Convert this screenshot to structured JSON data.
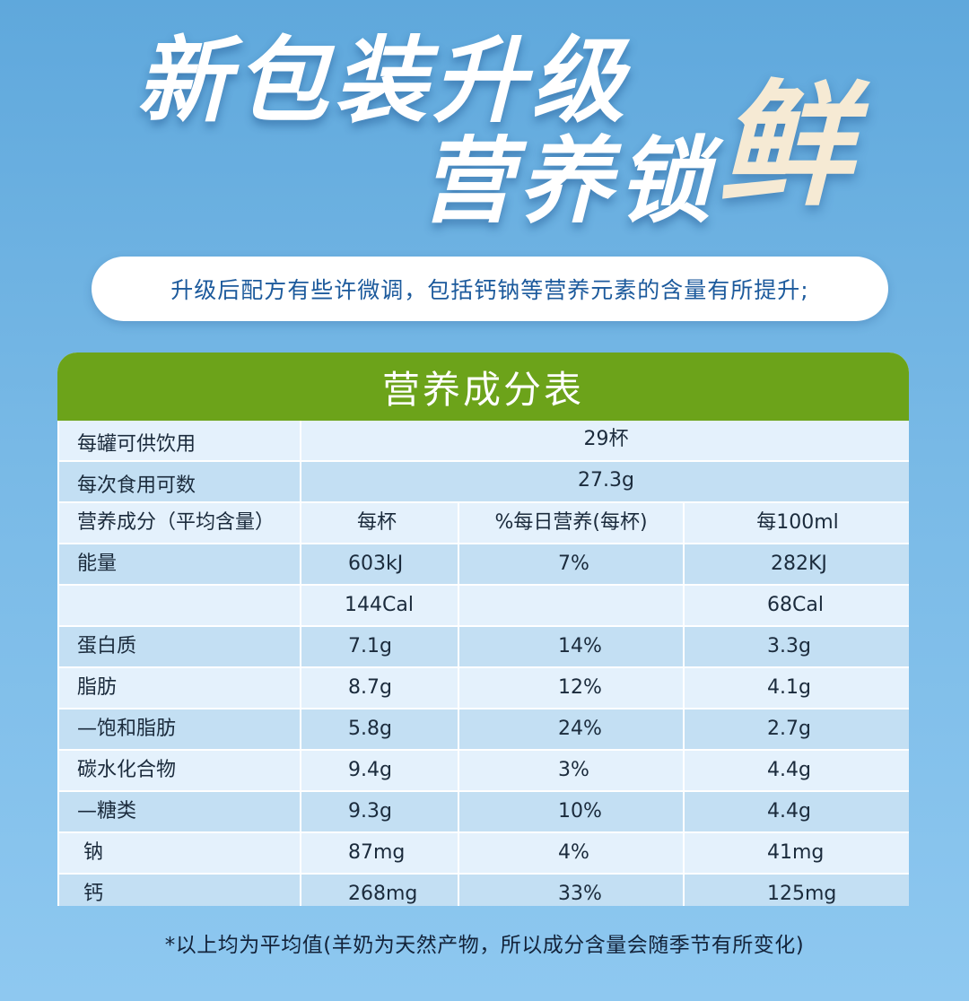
{
  "headline": {
    "line1": "新包装升级",
    "line2": "营养锁",
    "accent": "鲜"
  },
  "subtitle": "升级后配方有些许微调，包括钙钠等营养元素的含量有所提升;",
  "table": {
    "title": "营养成分表",
    "servings_label": "每罐可供饮用",
    "servings_value": "29杯",
    "portion_label": "每次食用可数",
    "portion_value": "27.3g",
    "columns": [
      "营养成分（平均含量）",
      "每杯",
      "%每日营养(每杯)",
      "每100ml"
    ],
    "rows": [
      [
        "能量",
        "603kJ",
        "7%",
        "282KJ"
      ],
      [
        "",
        "144Cal",
        "",
        "68Cal"
      ],
      [
        "蛋白质",
        "7.1g",
        "14%",
        "3.3g"
      ],
      [
        "脂肪",
        "8.7g",
        "12%",
        "4.1g"
      ],
      [
        "—饱和脂肪",
        "5.8g",
        "24%",
        "2.7g"
      ],
      [
        "碳水化合物",
        "9.4g",
        "3%",
        "4.4g"
      ],
      [
        "—糖类",
        "9.3g",
        "10%",
        "4.4g"
      ],
      [
        " 钠",
        "87mg",
        "4%",
        "41mg"
      ],
      [
        " 钙",
        "268mg",
        "33%",
        "125mg"
      ]
    ]
  },
  "footnote": "*以上均为平均值(羊奶为天然产物，所以成分含量会随季节有所变化)",
  "colors": {
    "background": "#6aafe0",
    "header_green": "#6ca31a",
    "row_light": "#e4f1fc",
    "row_dark": "#c3dff3",
    "subtitle_text": "#1c5a9c"
  }
}
